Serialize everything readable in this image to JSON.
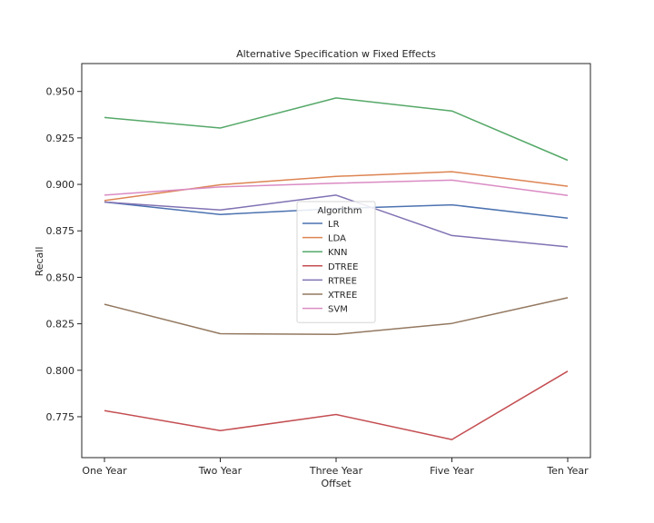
{
  "chart_data": {
    "type": "line",
    "title": "Alternative Specification w Fixed Effects",
    "xlabel": "Offset",
    "ylabel": "Recall",
    "categories": [
      "One Year",
      "Two Year",
      "Three Year",
      "Five Year",
      "Ten Year"
    ],
    "ylim": [
      0.753,
      0.965
    ],
    "yticks": [
      0.775,
      0.8,
      0.825,
      0.85,
      0.875,
      0.9,
      0.925,
      0.95
    ],
    "ytick_labels": [
      "0.775",
      "0.800",
      "0.825",
      "0.850",
      "0.875",
      "0.900",
      "0.925",
      "0.950"
    ],
    "grid": false,
    "legend_title": "Algorithm",
    "legend_position": "center",
    "series": [
      {
        "name": "LR",
        "color": "#4c72b0",
        "values": [
          0.8905,
          0.8838,
          0.887,
          0.889,
          0.8818
        ]
      },
      {
        "name": "LDA",
        "color": "#dd8452",
        "values": [
          0.8913,
          0.8998,
          0.9043,
          0.9068,
          0.899
        ]
      },
      {
        "name": "KNN",
        "color": "#55a868",
        "values": [
          0.936,
          0.9303,
          0.9465,
          0.9395,
          0.913
        ]
      },
      {
        "name": "DTREE",
        "color": "#c44e52",
        "values": [
          0.7783,
          0.7675,
          0.7762,
          0.7627,
          0.7995
        ]
      },
      {
        "name": "RTREE",
        "color": "#8172b3",
        "values": [
          0.8905,
          0.8862,
          0.8942,
          0.8725,
          0.8664
        ]
      },
      {
        "name": "XTREE",
        "color": "#937860",
        "values": [
          0.8355,
          0.8197,
          0.8193,
          0.8252,
          0.839
        ]
      },
      {
        "name": "SVM",
        "color": "#da8bc3",
        "values": [
          0.8942,
          0.8986,
          0.9006,
          0.9023,
          0.894
        ]
      }
    ]
  }
}
